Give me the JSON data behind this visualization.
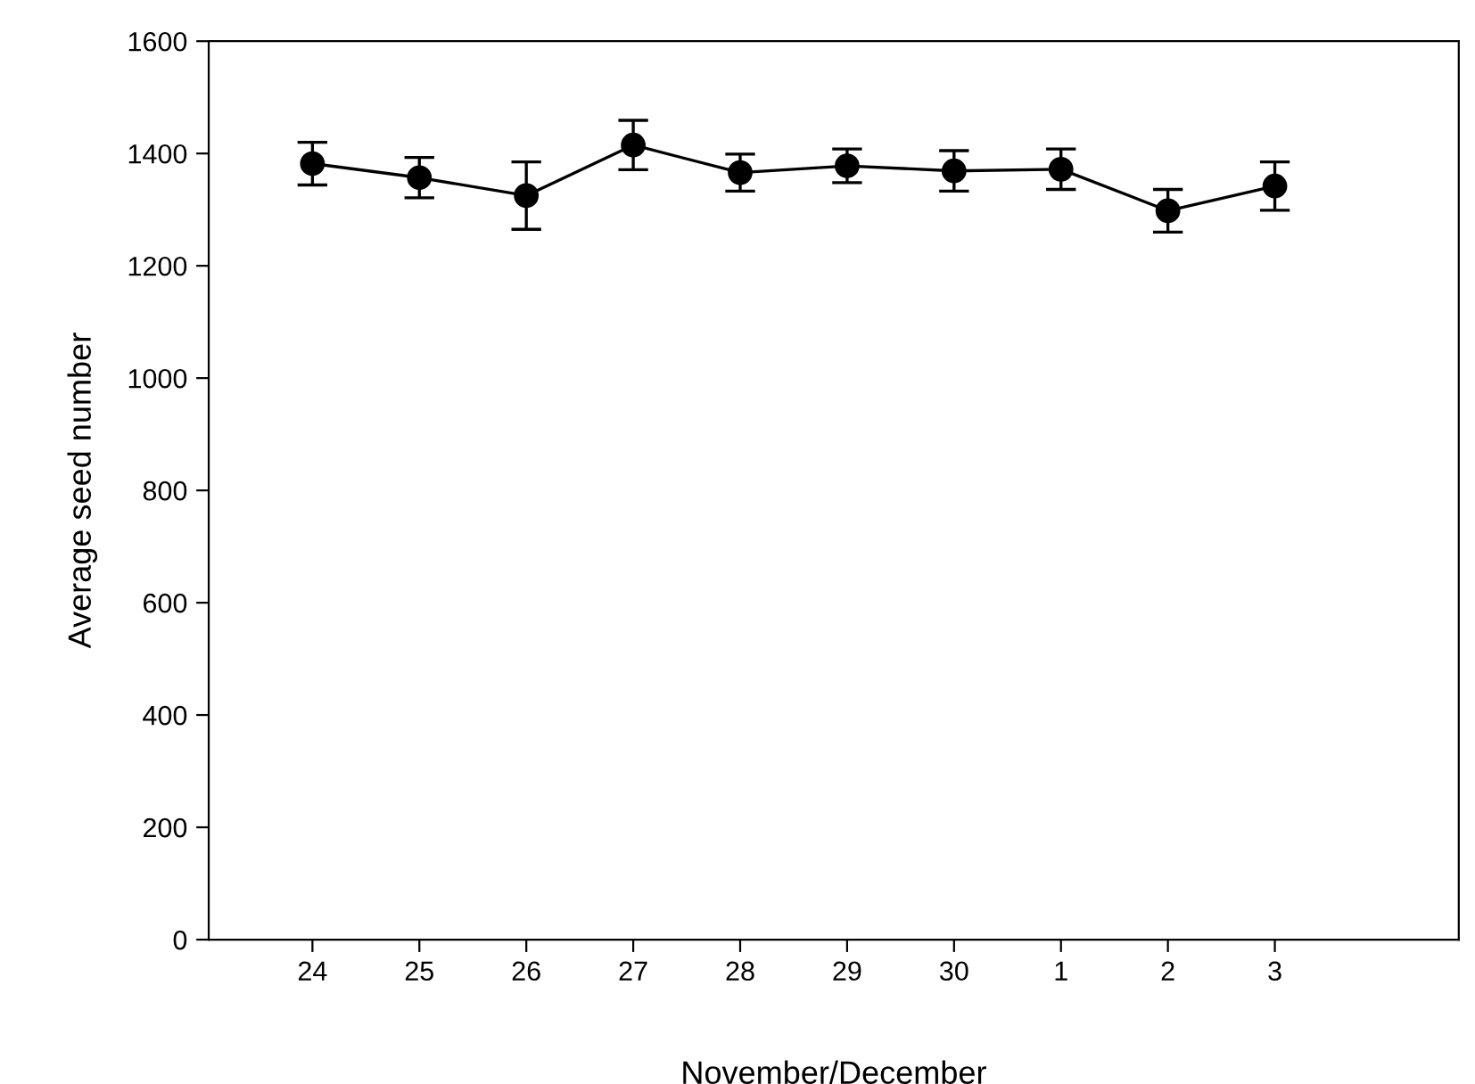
{
  "chart_data": {
    "type": "line",
    "xlabel": "November/December",
    "ylabel": "Average seed number",
    "categories": [
      "24",
      "25",
      "26",
      "27",
      "28",
      "29",
      "30",
      "1",
      "2",
      "3"
    ],
    "series": [
      {
        "color": "#000000",
        "values": [
          1382,
          1357,
          1325,
          1415,
          1366,
          1378,
          1369,
          1372,
          1298,
          1342
        ],
        "errors": [
          38,
          36,
          60,
          44,
          33,
          30,
          36,
          36,
          38,
          43
        ]
      }
    ],
    "marker": "circle",
    "line_style": "solid",
    "ylim": [
      0,
      1600
    ],
    "yticks": [
      0,
      200,
      400,
      600,
      800,
      1000,
      1200,
      1400,
      1600
    ],
    "grid": false,
    "legend": false
  }
}
